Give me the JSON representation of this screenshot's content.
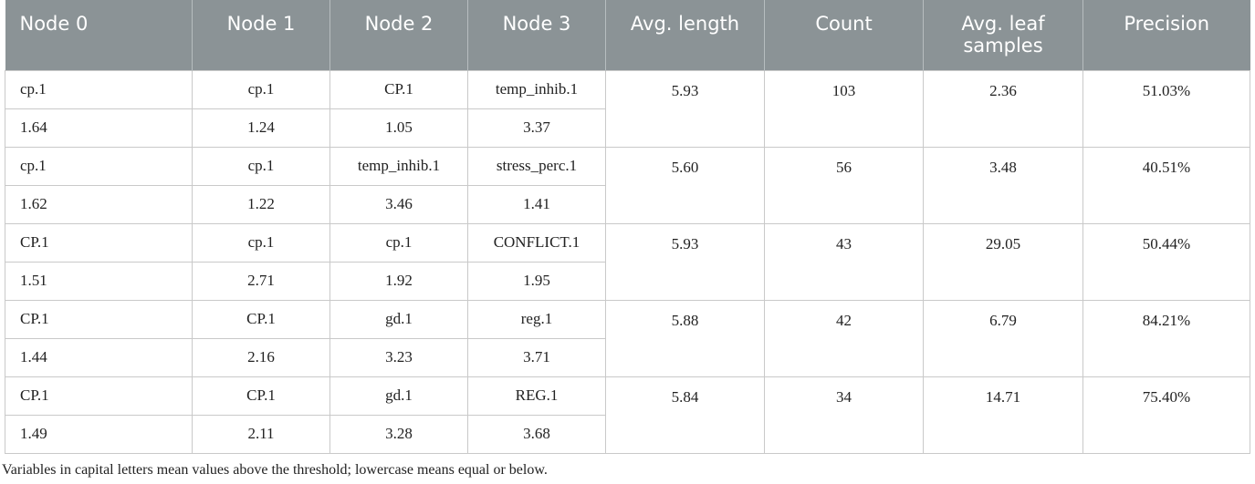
{
  "table": {
    "header": [
      "Node 0",
      "Node 1",
      "Node 2",
      "Node 3",
      "Avg. length",
      "Count",
      "Avg. leaf samples",
      "Precision"
    ],
    "rows": [
      {
        "nodes": [
          "cp.1",
          "cp.1",
          "CP.1",
          "temp_inhib.1"
        ],
        "thresholds": [
          "1.64",
          "1.24",
          "1.05",
          "3.37"
        ],
        "avg_length": "5.93",
        "count": "103",
        "avg_leaf_samples": "2.36",
        "precision": "51.03%"
      },
      {
        "nodes": [
          "cp.1",
          "cp.1",
          "temp_inhib.1",
          "stress_perc.1"
        ],
        "thresholds": [
          "1.62",
          "1.22",
          "3.46",
          "1.41"
        ],
        "avg_length": "5.60",
        "count": "56",
        "avg_leaf_samples": "3.48",
        "precision": "40.51%"
      },
      {
        "nodes": [
          "CP.1",
          "cp.1",
          "cp.1",
          "CONFLICT.1"
        ],
        "thresholds": [
          "1.51",
          "2.71",
          "1.92",
          "1.95"
        ],
        "avg_length": "5.93",
        "count": "43",
        "avg_leaf_samples": "29.05",
        "precision": "50.44%"
      },
      {
        "nodes": [
          "CP.1",
          "CP.1",
          "gd.1",
          "reg.1"
        ],
        "thresholds": [
          "1.44",
          "2.16",
          "3.23",
          "3.71"
        ],
        "avg_length": "5.88",
        "count": "42",
        "avg_leaf_samples": "6.79",
        "precision": "84.21%"
      },
      {
        "nodes": [
          "CP.1",
          "CP.1",
          "gd.1",
          "REG.1"
        ],
        "thresholds": [
          "1.49",
          "2.11",
          "3.28",
          "3.68"
        ],
        "avg_length": "5.84",
        "count": "34",
        "avg_leaf_samples": "14.71",
        "precision": "75.40%"
      }
    ],
    "footnote": "Variables in capital letters mean values above the threshold; lowercase means equal or below."
  }
}
